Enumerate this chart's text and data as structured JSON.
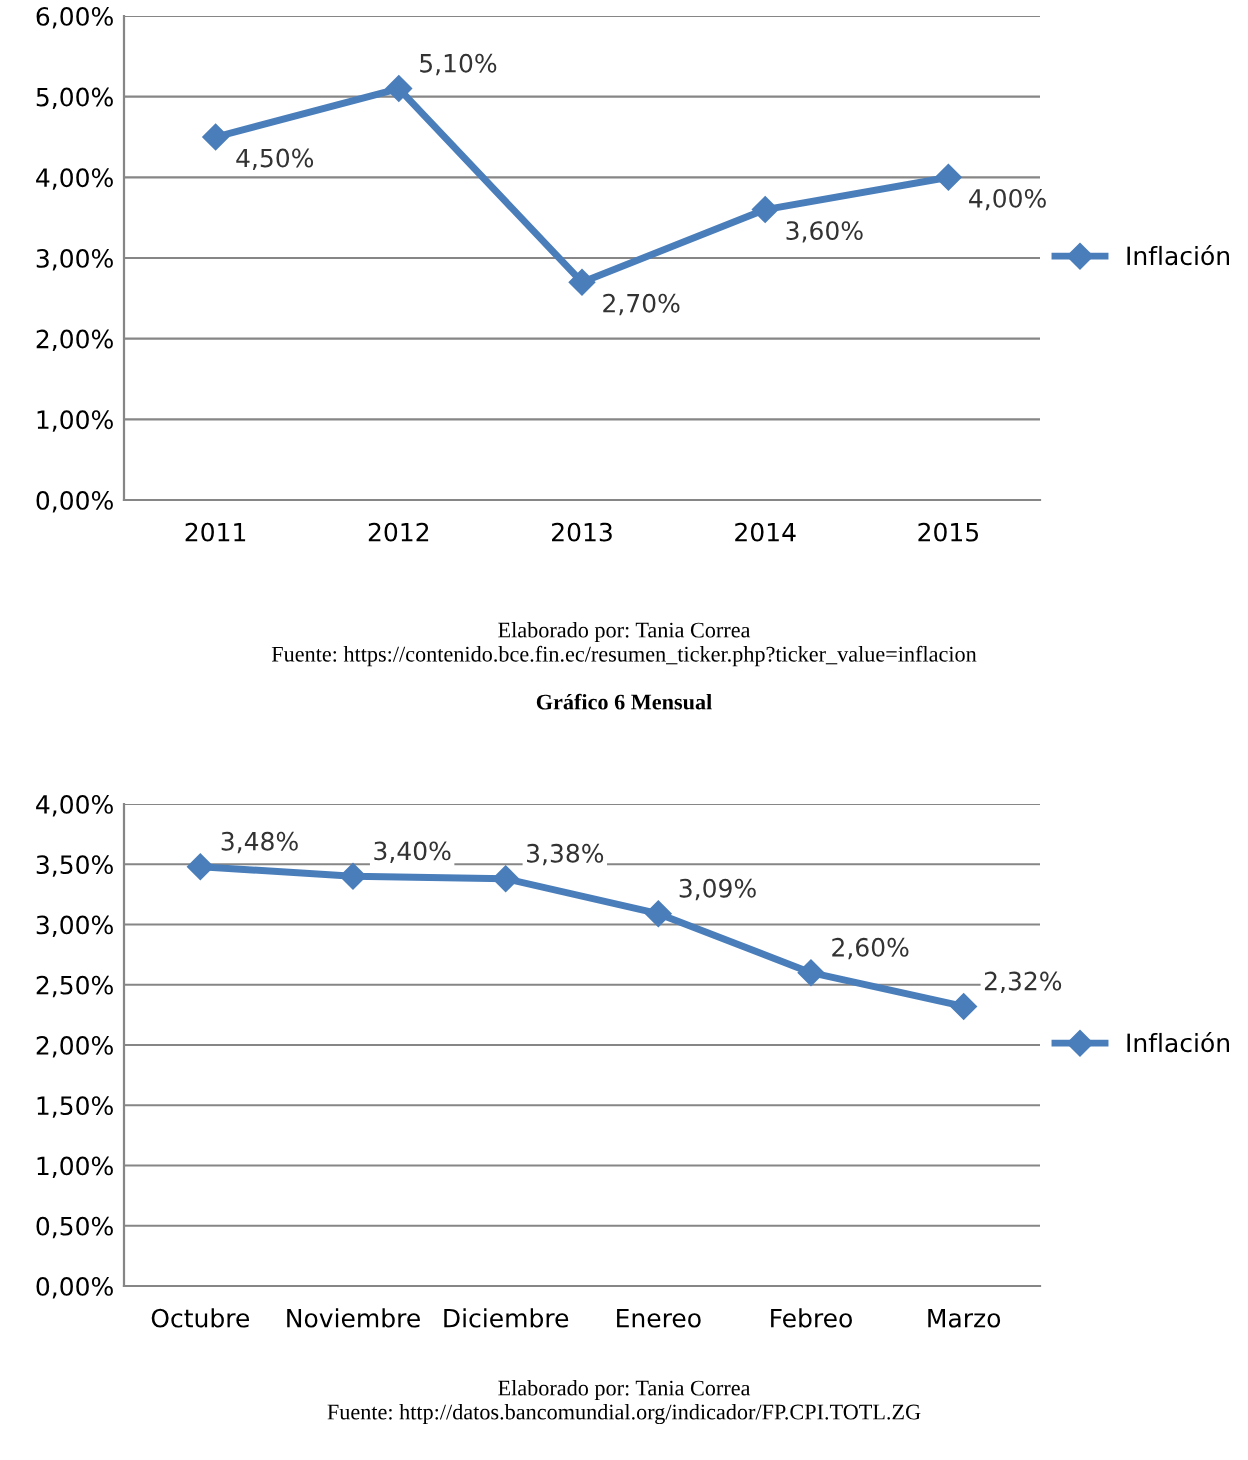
{
  "chart_data": [
    {
      "type": "line",
      "categories": [
        "2011",
        "2012",
        "2013",
        "2014",
        "2015"
      ],
      "series": [
        {
          "name": "Inflación",
          "color": "#4a7ebb",
          "values": [
            4.5,
            5.1,
            2.7,
            3.6,
            4.0
          ],
          "value_labels": [
            "4,50%",
            "5,10%",
            "2,70%",
            "3,60%",
            "4,00%"
          ]
        }
      ],
      "ylim": [
        0,
        6
      ],
      "yticks": [
        {
          "value": 0,
          "label": "0,00%"
        },
        {
          "value": 1,
          "label": "1,00%"
        },
        {
          "value": 2,
          "label": "2,00%"
        },
        {
          "value": 3,
          "label": "3,00%"
        },
        {
          "value": 4,
          "label": "4,00%"
        },
        {
          "value": 5,
          "label": "5,00%"
        },
        {
          "value": 6,
          "label": "6,00%"
        }
      ],
      "grid": "y",
      "legend": "right",
      "marker": "diamond",
      "line_style": "solid",
      "annotations": [
        "Elaborado por: Tania Correa",
        "Fuente: https://contenido.bce.fin.ec/resumen_ticker.php?ticker_value=inflacion"
      ]
    },
    {
      "type": "line",
      "title": "Gráfico 6 Mensual",
      "categories": [
        "Octubre",
        "Noviembre",
        "Diciembre",
        "Enereo",
        "Febreo",
        "Marzo"
      ],
      "series": [
        {
          "name": "Inflación",
          "color": "#4a7ebb",
          "values": [
            3.48,
            3.4,
            3.38,
            3.09,
            2.6,
            2.32
          ],
          "value_labels": [
            "3,48%",
            "3,40%",
            "3,38%",
            "3,09%",
            "2,60%",
            "2,32%"
          ]
        }
      ],
      "ylim": [
        0,
        4
      ],
      "yticks": [
        {
          "value": 0,
          "label": "0,00%"
        },
        {
          "value": 0.5,
          "label": "0,50%"
        },
        {
          "value": 1,
          "label": "1,00%"
        },
        {
          "value": 1.5,
          "label": "1,50%"
        },
        {
          "value": 2,
          "label": "2,00%"
        },
        {
          "value": 2.5,
          "label": "2,50%"
        },
        {
          "value": 3,
          "label": "3,00%"
        },
        {
          "value": 3.5,
          "label": "3,50%"
        },
        {
          "value": 4,
          "label": "4,00%"
        }
      ],
      "grid": "y",
      "legend": "right",
      "marker": "diamond",
      "line_style": "solid",
      "annotations": [
        "Elaborado por: Tania Correa",
        "Fuente: http://datos.bancomundial.org/indicador/FP.CPI.TOTL.ZG"
      ]
    }
  ]
}
